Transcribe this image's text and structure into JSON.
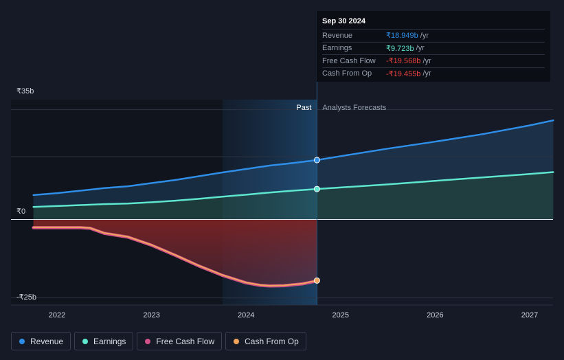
{
  "tooltip": {
    "date": "Sep 30 2024",
    "rows": [
      {
        "label": "Revenue",
        "value": "₹18.949b",
        "unit": "/yr",
        "color": "#2f8fe8"
      },
      {
        "label": "Earnings",
        "value": "₹9.723b",
        "unit": "/yr",
        "color": "#5ee6cf"
      },
      {
        "label": "Free Cash Flow",
        "value": "-₹19.568b",
        "unit": "/yr",
        "color": "#e8413f"
      },
      {
        "label": "Cash From Op",
        "value": "-₹19.455b",
        "unit": "/yr",
        "color": "#e8413f"
      }
    ]
  },
  "legend": [
    {
      "label": "Revenue",
      "color": "#2f8fe8"
    },
    {
      "label": "Earnings",
      "color": "#5ee6cf"
    },
    {
      "label": "Free Cash Flow",
      "color": "#d0508a"
    },
    {
      "label": "Cash From Op",
      "color": "#f0a45c"
    }
  ],
  "colors": {
    "revenue": "#2f8fe8",
    "earnings": "#5ee6cf",
    "fcf": "#d0508a",
    "cfo": "#f0a45c",
    "negative_fill": "#8a2a2a",
    "background": "#151a26"
  },
  "chart_data": {
    "type": "line",
    "title": "",
    "xlabel": "",
    "ylabel": "",
    "y_tick_labels": [
      "₹35b",
      "₹0",
      "-₹25b"
    ],
    "y_ticks": [
      35,
      0,
      -25
    ],
    "x_tick_labels": [
      "2022",
      "2023",
      "2024",
      "2025",
      "2026",
      "2027"
    ],
    "x_ticks": [
      2022,
      2023,
      2024,
      2025,
      2026,
      2027
    ],
    "xlim": [
      2021.5,
      2027.25
    ],
    "ylim": [
      -25,
      35
    ],
    "past_label": "Past",
    "forecast_label": "Analysts Forecasts",
    "divider_x": 2024.75,
    "highlight_start_x": 2023.75,
    "series": [
      {
        "name": "Revenue",
        "key": "revenue",
        "x": [
          2021.75,
          2022.0,
          2022.25,
          2022.5,
          2022.75,
          2023.0,
          2023.25,
          2023.5,
          2023.75,
          2024.0,
          2024.25,
          2024.5,
          2024.75
        ],
        "values": [
          7.8,
          8.4,
          9.2,
          10.0,
          10.6,
          11.6,
          12.6,
          13.8,
          15.0,
          16.1,
          17.2,
          18.0,
          18.949
        ]
      },
      {
        "name": "Revenue forecast",
        "key": "revenue",
        "x": [
          2024.75,
          2025.0,
          2025.5,
          2026.0,
          2026.5,
          2027.0,
          2027.25
        ],
        "values": [
          18.949,
          20.2,
          22.6,
          24.8,
          27.2,
          30.0,
          31.6
        ]
      },
      {
        "name": "Earnings",
        "key": "earnings",
        "x": [
          2021.75,
          2022.0,
          2022.25,
          2022.5,
          2022.75,
          2023.0,
          2023.25,
          2023.5,
          2023.75,
          2024.0,
          2024.25,
          2024.5,
          2024.75
        ],
        "values": [
          4.0,
          4.3,
          4.6,
          4.9,
          5.1,
          5.5,
          6.0,
          6.6,
          7.3,
          7.9,
          8.6,
          9.2,
          9.723
        ]
      },
      {
        "name": "Earnings forecast",
        "key": "earnings",
        "x": [
          2024.75,
          2025.0,
          2025.5,
          2026.0,
          2026.5,
          2027.0,
          2027.25
        ],
        "values": [
          9.723,
          10.2,
          11.2,
          12.3,
          13.4,
          14.5,
          15.1
        ]
      },
      {
        "name": "Free Cash Flow",
        "key": "fcf",
        "x": [
          2021.75,
          2022.0,
          2022.25,
          2022.35,
          2022.5,
          2022.75,
          2023.0,
          2023.25,
          2023.5,
          2023.75,
          2024.0,
          2024.15,
          2024.25,
          2024.4,
          2024.6,
          2024.75
        ],
        "values": [
          -2.6,
          -2.6,
          -2.6,
          -2.8,
          -4.4,
          -5.6,
          -8.2,
          -11.4,
          -14.8,
          -17.8,
          -20.2,
          -21.0,
          -21.2,
          -21.1,
          -20.5,
          -19.568
        ]
      },
      {
        "name": "Cash From Op",
        "key": "cfo",
        "x": [
          2021.75,
          2022.0,
          2022.25,
          2022.35,
          2022.5,
          2022.75,
          2023.0,
          2023.25,
          2023.5,
          2023.75,
          2024.0,
          2024.15,
          2024.25,
          2024.4,
          2024.6,
          2024.75
        ],
        "values": [
          -2.5,
          -2.5,
          -2.5,
          -2.7,
          -4.3,
          -5.5,
          -8.1,
          -11.3,
          -14.7,
          -17.7,
          -20.1,
          -20.9,
          -21.1,
          -21.0,
          -20.4,
          -19.455
        ]
      }
    ]
  }
}
